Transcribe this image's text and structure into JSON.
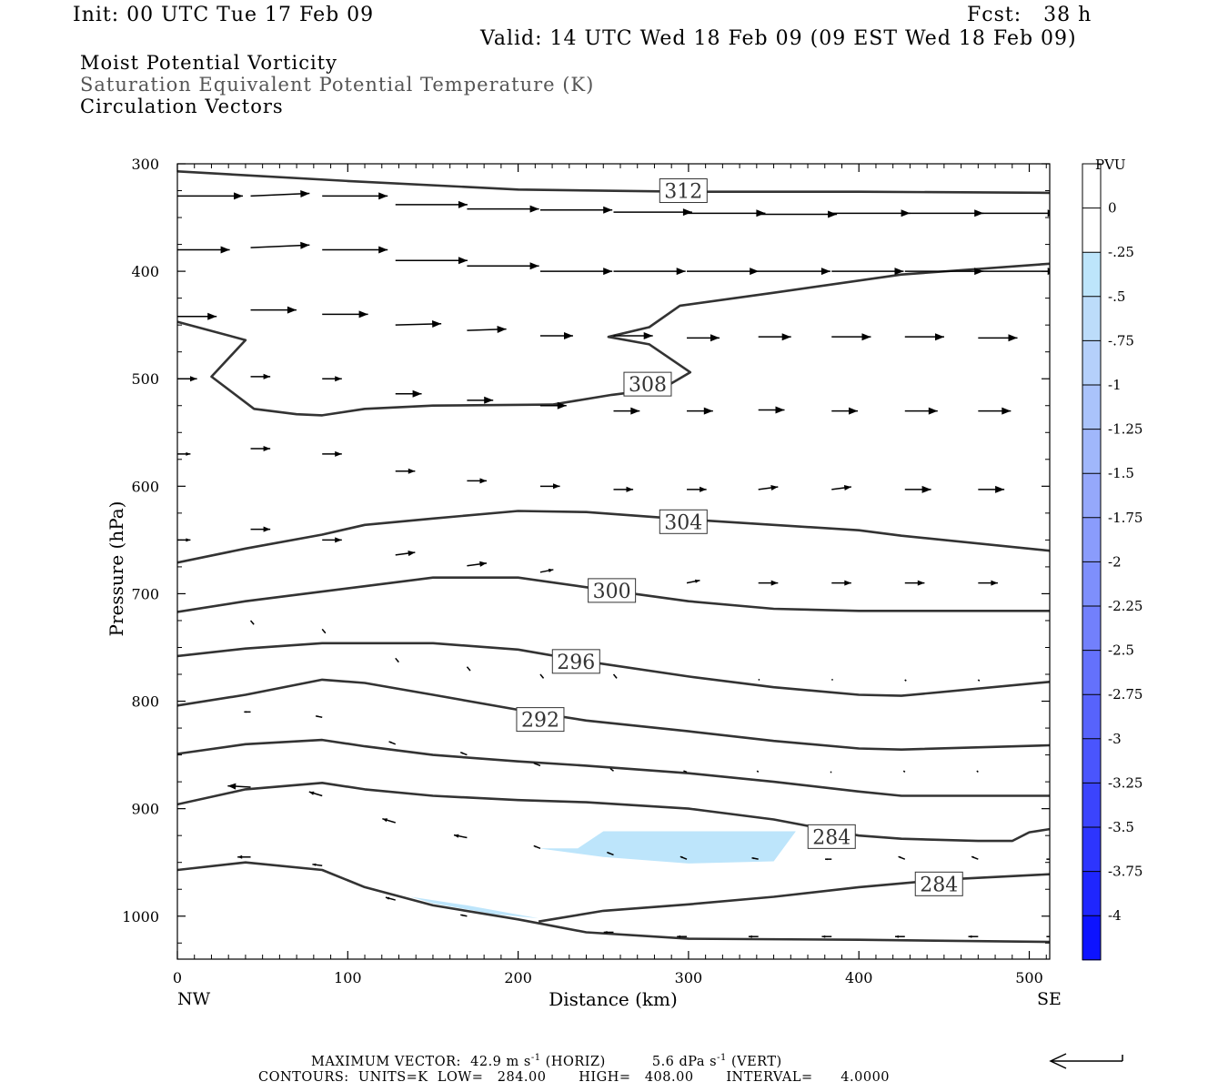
{
  "header": {
    "init": "Init: 00 UTC Tue 17 Feb 09",
    "fcst": "Fcst:   38 h",
    "valid": "Valid: 14 UTC Wed 18 Feb 09 (09 EST Wed 18 Feb 09)",
    "line1": "Moist Potential Vorticity",
    "line2": "Saturation Equivalent Potential Temperature (K)",
    "line3": "Circulation Vectors"
  },
  "footer": {
    "vec_left": "MAXIMUM VECTOR:  42.9 m s",
    "vec_sup1": "-1",
    "vec_mid": " (HORIZ)          5.6 dPa s",
    "vec_sup2": "-1",
    "vec_right": " (VERT)",
    "contours": "CONTOURS:  UNITS=K  LOW=   284.00       HIGH=   408.00       INTERVAL=      4.0000"
  },
  "chart_data": {
    "type": "cross-section",
    "xlabel": "Distance (km)",
    "ylabel": "Pressure (hPa)",
    "xlim": [
      0,
      512
    ],
    "ylim": [
      1040,
      300
    ],
    "x_ticks": [
      "0",
      "100",
      "200",
      "300",
      "400",
      "500"
    ],
    "y_ticks": [
      "300",
      "400",
      "500",
      "600",
      "700",
      "800",
      "900",
      "1000"
    ],
    "x_end_labels": [
      "NW",
      "SE"
    ],
    "colorbar": {
      "unit": "PVU",
      "labels": [
        "0",
        "-.25",
        "-.5",
        "-.75",
        "-1",
        "-1.25",
        "-1.5",
        "-1.75",
        "-2",
        "-2.25",
        "-2.5",
        "-2.75",
        "-3",
        "-3.25",
        "-3.5",
        "-3.75",
        "-4"
      ],
      "colors": [
        "#ffffff",
        "#ffffff",
        "#bde5fb",
        "#bcdcfa",
        "#b5d0fb",
        "#aac3fb",
        "#a0b7fb",
        "#95a8fb",
        "#8a9cfc",
        "#7e8ffc",
        "#7280fc",
        "#6471fc",
        "#5763fc",
        "#4a55fd",
        "#3b44fd",
        "#2d35fe",
        "#1f26fe",
        "#0d13ff"
      ]
    },
    "contour_labels": [
      {
        "text": "312",
        "x": 297,
        "p": 325
      },
      {
        "text": "308",
        "x": 276,
        "p": 505
      },
      {
        "text": "304",
        "x": 297,
        "p": 633
      },
      {
        "text": "300",
        "x": 255,
        "p": 697
      },
      {
        "text": "296",
        "x": 234,
        "p": 763
      },
      {
        "text": "292",
        "x": 213,
        "p": 817
      },
      {
        "text": "284",
        "x": 384,
        "p": 926
      },
      {
        "text": "284",
        "x": 447,
        "p": 970
      }
    ],
    "contours": [
      [
        [
          0,
          307
        ],
        [
          100,
          316
        ],
        [
          200,
          324
        ],
        [
          300,
          326
        ],
        [
          400,
          326
        ],
        [
          512,
          327
        ]
      ],
      [
        [
          0,
          447
        ],
        [
          40,
          464
        ],
        [
          20,
          498
        ],
        [
          45,
          528
        ],
        [
          70,
          533
        ],
        [
          85,
          534
        ],
        [
          110,
          528
        ],
        [
          150,
          525
        ],
        [
          220,
          524
        ],
        [
          255,
          515
        ],
        [
          285,
          509
        ],
        [
          301,
          494
        ],
        [
          277,
          468
        ],
        [
          253,
          461
        ],
        [
          277,
          452
        ],
        [
          295,
          432
        ],
        [
          350,
          420
        ],
        [
          425,
          403
        ],
        [
          512,
          393
        ]
      ],
      [
        [
          0,
          671
        ],
        [
          40,
          658
        ],
        [
          85,
          645
        ],
        [
          110,
          636
        ],
        [
          150,
          630
        ],
        [
          200,
          623
        ],
        [
          240,
          624
        ],
        [
          300,
          631
        ],
        [
          400,
          641
        ],
        [
          425,
          646
        ],
        [
          512,
          660
        ]
      ],
      [
        [
          0,
          717
        ],
        [
          40,
          707
        ],
        [
          85,
          698
        ],
        [
          110,
          693
        ],
        [
          150,
          685
        ],
        [
          200,
          685
        ],
        [
          240,
          694
        ],
        [
          300,
          707
        ],
        [
          350,
          714
        ],
        [
          400,
          716
        ],
        [
          512,
          716
        ]
      ],
      [
        [
          0,
          758
        ],
        [
          40,
          751
        ],
        [
          85,
          746
        ],
        [
          110,
          746
        ],
        [
          150,
          746
        ],
        [
          200,
          752
        ],
        [
          240,
          763
        ],
        [
          300,
          777
        ],
        [
          350,
          787
        ],
        [
          400,
          794
        ],
        [
          425,
          795
        ],
        [
          512,
          782
        ]
      ],
      [
        [
          0,
          804
        ],
        [
          40,
          794
        ],
        [
          85,
          780
        ],
        [
          110,
          783
        ],
        [
          150,
          794
        ],
        [
          200,
          808
        ],
        [
          240,
          818
        ],
        [
          300,
          828
        ],
        [
          350,
          837
        ],
        [
          400,
          844
        ],
        [
          425,
          845
        ],
        [
          512,
          841
        ]
      ],
      [
        [
          0,
          849
        ],
        [
          40,
          840
        ],
        [
          85,
          836
        ],
        [
          110,
          842
        ],
        [
          150,
          850
        ],
        [
          200,
          856
        ],
        [
          240,
          860
        ],
        [
          300,
          867
        ],
        [
          350,
          875
        ],
        [
          400,
          884
        ],
        [
          425,
          888
        ],
        [
          512,
          888
        ]
      ],
      [
        [
          0,
          896
        ],
        [
          40,
          882
        ],
        [
          85,
          876
        ],
        [
          110,
          882
        ],
        [
          150,
          888
        ],
        [
          200,
          892
        ],
        [
          240,
          894
        ],
        [
          300,
          900
        ],
        [
          350,
          910
        ],
        [
          400,
          925
        ],
        [
          425,
          928
        ],
        [
          470,
          930
        ],
        [
          490,
          930
        ],
        [
          500,
          922
        ],
        [
          512,
          919
        ]
      ],
      [
        [
          0,
          957
        ],
        [
          40,
          950
        ],
        [
          85,
          957
        ],
        [
          110,
          973
        ],
        [
          150,
          990
        ],
        [
          200,
          1003
        ],
        [
          240,
          1015
        ],
        [
          300,
          1021
        ],
        [
          400,
          1022
        ],
        [
          512,
          1024
        ]
      ],
      [
        [
          212,
          1005
        ],
        [
          250,
          995
        ],
        [
          300,
          989
        ],
        [
          350,
          982
        ],
        [
          400,
          973
        ],
        [
          450,
          966
        ],
        [
          512,
          961
        ]
      ]
    ],
    "shaded_regions": [
      {
        "value": "-.25 to -.5",
        "points": [
          [
            212,
            937
          ],
          [
            235,
            937
          ],
          [
            250,
            921
          ],
          [
            300,
            921
          ],
          [
            363,
            921
          ],
          [
            350,
            949
          ],
          [
            300,
            951
          ],
          [
            250,
            945
          ],
          [
            212,
            937
          ]
        ]
      },
      {
        "value": "-.25 to -.5",
        "points": [
          [
            137,
            982
          ],
          [
            170,
            990
          ],
          [
            212,
            1002
          ],
          [
            185,
            998
          ],
          [
            150,
            988
          ],
          [
            137,
            982
          ]
        ]
      }
    ],
    "vectors": [
      {
        "x": 0,
        "p": 330,
        "u": 1.0,
        "w": 0.0
      },
      {
        "x": 43,
        "p": 330,
        "u": 0.9,
        "w": 0.04
      },
      {
        "x": 85,
        "p": 330,
        "u": 1.0,
        "w": 0.0
      },
      {
        "x": 128,
        "p": 338,
        "u": 1.1,
        "w": 0.0
      },
      {
        "x": 170,
        "p": 342,
        "u": 1.1,
        "w": 0.0
      },
      {
        "x": 213,
        "p": 343,
        "u": 1.1,
        "w": 0.0
      },
      {
        "x": 256,
        "p": 345,
        "u": 1.2,
        "w": 0.0
      },
      {
        "x": 299,
        "p": 346,
        "u": 1.2,
        "w": 0.0
      },
      {
        "x": 341,
        "p": 347,
        "u": 1.2,
        "w": 0.0
      },
      {
        "x": 384,
        "p": 346,
        "u": 1.2,
        "w": 0.0
      },
      {
        "x": 427,
        "p": 346,
        "u": 1.2,
        "w": 0.0
      },
      {
        "x": 470,
        "p": 346,
        "u": 1.2,
        "w": 0.0
      },
      {
        "x": 512,
        "p": 347,
        "u": 1.1,
        "w": 0.0
      },
      {
        "x": 0,
        "p": 380,
        "u": 0.8,
        "w": 0.0
      },
      {
        "x": 43,
        "p": 378,
        "u": 0.9,
        "w": 0.04
      },
      {
        "x": 85,
        "p": 380,
        "u": 1.0,
        "w": 0.0
      },
      {
        "x": 128,
        "p": 390,
        "u": 1.1,
        "w": 0.0
      },
      {
        "x": 170,
        "p": 395,
        "u": 1.1,
        "w": 0.0
      },
      {
        "x": 213,
        "p": 400,
        "u": 1.1,
        "w": 0.0
      },
      {
        "x": 256,
        "p": 400,
        "u": 1.1,
        "w": 0.0
      },
      {
        "x": 299,
        "p": 400,
        "u": 1.1,
        "w": 0.0
      },
      {
        "x": 341,
        "p": 400,
        "u": 1.1,
        "w": 0.0
      },
      {
        "x": 384,
        "p": 400,
        "u": 1.1,
        "w": 0.0
      },
      {
        "x": 427,
        "p": 400,
        "u": 1.2,
        "w": 0.0
      },
      {
        "x": 470,
        "p": 400,
        "u": 1.2,
        "w": 0.0
      },
      {
        "x": 0,
        "p": 442,
        "u": 0.6,
        "w": 0.0
      },
      {
        "x": 43,
        "p": 436,
        "u": 0.7,
        "w": 0.0
      },
      {
        "x": 85,
        "p": 440,
        "u": 0.7,
        "w": 0.0
      },
      {
        "x": 128,
        "p": 450,
        "u": 0.7,
        "w": 0.02
      },
      {
        "x": 170,
        "p": 455,
        "u": 0.6,
        "w": 0.02
      },
      {
        "x": 213,
        "p": 460,
        "u": 0.5,
        "w": 0.0
      },
      {
        "x": 256,
        "p": 460,
        "u": 0.6,
        "w": 0.0
      },
      {
        "x": 299,
        "p": 462,
        "u": 0.5,
        "w": 0.0
      },
      {
        "x": 341,
        "p": 461,
        "u": 0.5,
        "w": 0.0
      },
      {
        "x": 384,
        "p": 461,
        "u": 0.6,
        "w": 0.0
      },
      {
        "x": 427,
        "p": 461,
        "u": 0.6,
        "w": 0.0
      },
      {
        "x": 470,
        "p": 462,
        "u": 0.6,
        "w": 0.0
      },
      {
        "x": 0,
        "p": 500,
        "u": 0.3,
        "w": 0.0
      },
      {
        "x": 43,
        "p": 498,
        "u": 0.3,
        "w": 0.0
      },
      {
        "x": 85,
        "p": 500,
        "u": 0.3,
        "w": 0.0
      },
      {
        "x": 128,
        "p": 514,
        "u": 0.4,
        "w": 0.0
      },
      {
        "x": 170,
        "p": 520,
        "u": 0.4,
        "w": 0.0
      },
      {
        "x": 213,
        "p": 525,
        "u": 0.4,
        "w": 0.0
      },
      {
        "x": 256,
        "p": 530,
        "u": 0.4,
        "w": 0.0
      },
      {
        "x": 299,
        "p": 530,
        "u": 0.4,
        "w": 0.0
      },
      {
        "x": 341,
        "p": 529,
        "u": 0.4,
        "w": 0.0
      },
      {
        "x": 384,
        "p": 530,
        "u": 0.4,
        "w": 0.0
      },
      {
        "x": 427,
        "p": 530,
        "u": 0.5,
        "w": 0.0
      },
      {
        "x": 470,
        "p": 530,
        "u": 0.5,
        "w": 0.0
      },
      {
        "x": 0,
        "p": 570,
        "u": 0.2,
        "w": 0.0
      },
      {
        "x": 43,
        "p": 565,
        "u": 0.3,
        "w": 0.0
      },
      {
        "x": 85,
        "p": 570,
        "u": 0.3,
        "w": 0.0
      },
      {
        "x": 128,
        "p": 586,
        "u": 0.3,
        "w": 0.0
      },
      {
        "x": 170,
        "p": 595,
        "u": 0.3,
        "w": 0.0
      },
      {
        "x": 213,
        "p": 600,
        "u": 0.3,
        "w": 0.0
      },
      {
        "x": 256,
        "p": 603,
        "u": 0.3,
        "w": 0.0
      },
      {
        "x": 299,
        "p": 603,
        "u": 0.3,
        "w": 0.0
      },
      {
        "x": 341,
        "p": 603,
        "u": 0.3,
        "w": 0.04
      },
      {
        "x": 384,
        "p": 603,
        "u": 0.3,
        "w": 0.04
      },
      {
        "x": 427,
        "p": 603,
        "u": 0.4,
        "w": 0.0
      },
      {
        "x": 470,
        "p": 603,
        "u": 0.4,
        "w": 0.0
      },
      {
        "x": 0,
        "p": 650,
        "u": 0.2,
        "w": 0.0
      },
      {
        "x": 43,
        "p": 640,
        "u": 0.3,
        "w": 0.0
      },
      {
        "x": 85,
        "p": 650,
        "u": 0.3,
        "w": 0.0
      },
      {
        "x": 128,
        "p": 664,
        "u": 0.3,
        "w": 0.04
      },
      {
        "x": 170,
        "p": 674,
        "u": 0.3,
        "w": 0.04
      },
      {
        "x": 213,
        "p": 680,
        "u": 0.2,
        "w": 0.04
      },
      {
        "x": 256,
        "p": 690,
        "u": 0.2,
        "w": 0.04
      },
      {
        "x": 299,
        "p": 690,
        "u": 0.2,
        "w": 0.04
      },
      {
        "x": 341,
        "p": 690,
        "u": 0.3,
        "w": 0.0
      },
      {
        "x": 384,
        "p": 690,
        "u": 0.3,
        "w": 0.0
      },
      {
        "x": 427,
        "p": 690,
        "u": 0.3,
        "w": 0.0
      },
      {
        "x": 470,
        "p": 690,
        "u": 0.3,
        "w": 0.0
      },
      {
        "x": 43,
        "p": 725,
        "u": 0.05,
        "w": -0.06
      },
      {
        "x": 85,
        "p": 733,
        "u": 0.05,
        "w": -0.06
      },
      {
        "x": 128,
        "p": 760,
        "u": 0.05,
        "w": -0.06
      },
      {
        "x": 170,
        "p": 768,
        "u": 0.05,
        "w": -0.06
      },
      {
        "x": 213,
        "p": 775,
        "u": 0.05,
        "w": -0.06
      },
      {
        "x": 256,
        "p": 775,
        "u": 0.05,
        "w": -0.06
      },
      {
        "x": 341,
        "p": 780,
        "u": 0.02,
        "w": 0.0
      },
      {
        "x": 384,
        "p": 780,
        "u": 0.02,
        "w": 0.0
      },
      {
        "x": 427,
        "p": 780,
        "u": 0.02,
        "w": -0.02
      },
      {
        "x": 470,
        "p": 780,
        "u": 0.02,
        "w": -0.02
      },
      {
        "x": 43,
        "p": 810,
        "u": -0.1,
        "w": 0.0
      },
      {
        "x": 85,
        "p": 815,
        "u": -0.1,
        "w": 0.02
      },
      {
        "x": 128,
        "p": 840,
        "u": -0.1,
        "w": 0.04
      },
      {
        "x": 170,
        "p": 850,
        "u": -0.1,
        "w": 0.04
      },
      {
        "x": 213,
        "p": 860,
        "u": -0.1,
        "w": 0.04
      },
      {
        "x": 256,
        "p": 865,
        "u": -0.05,
        "w": 0.04
      },
      {
        "x": 299,
        "p": 866,
        "u": -0.05,
        "w": 0.02
      },
      {
        "x": 341,
        "p": 866,
        "u": -0.02,
        "w": 0.02
      },
      {
        "x": 384,
        "p": 866,
        "u": -0.02,
        "w": 0.0
      },
      {
        "x": 427,
        "p": 866,
        "u": -0.02,
        "w": 0.02
      },
      {
        "x": 470,
        "p": 866,
        "u": -0.02,
        "w": 0.02
      },
      {
        "x": 43,
        "p": 880,
        "u": -0.35,
        "w": 0.02
      },
      {
        "x": 85,
        "p": 888,
        "u": -0.2,
        "w": 0.06
      },
      {
        "x": 128,
        "p": 913,
        "u": -0.2,
        "w": 0.06
      },
      {
        "x": 170,
        "p": 927,
        "u": -0.2,
        "w": 0.04
      },
      {
        "x": 213,
        "p": 937,
        "u": -0.1,
        "w": 0.04
      },
      {
        "x": 256,
        "p": 943,
        "u": -0.1,
        "w": 0.04
      },
      {
        "x": 299,
        "p": 947,
        "u": -0.1,
        "w": 0.04
      },
      {
        "x": 341,
        "p": 947,
        "u": -0.1,
        "w": 0.02
      },
      {
        "x": 384,
        "p": 947,
        "u": -0.1,
        "w": 0.0
      },
      {
        "x": 427,
        "p": 947,
        "u": -0.1,
        "w": 0.04
      },
      {
        "x": 470,
        "p": 947,
        "u": -0.1,
        "w": 0.04
      },
      {
        "x": 512,
        "p": 947,
        "u": -0.05,
        "w": 0.0
      },
      {
        "x": 43,
        "p": 945,
        "u": -0.2,
        "w": 0.0
      },
      {
        "x": 85,
        "p": 953,
        "u": -0.15,
        "w": 0.02
      },
      {
        "x": 128,
        "p": 985,
        "u": -0.15,
        "w": 0.04
      },
      {
        "x": 170,
        "p": 1000,
        "u": -0.1,
        "w": 0.02
      },
      {
        "x": 256,
        "p": 1015,
        "u": -0.15,
        "w": 0.0
      },
      {
        "x": 299,
        "p": 1019,
        "u": -0.15,
        "w": 0.0
      },
      {
        "x": 341,
        "p": 1019,
        "u": -0.15,
        "w": 0.0
      },
      {
        "x": 384,
        "p": 1019,
        "u": -0.15,
        "w": 0.0
      },
      {
        "x": 427,
        "p": 1019,
        "u": -0.15,
        "w": 0.0
      },
      {
        "x": 470,
        "p": 1019,
        "u": -0.15,
        "w": 0.0
      },
      {
        "x": 512,
        "p": 1019,
        "u": -0.05,
        "w": 0.0
      }
    ]
  }
}
